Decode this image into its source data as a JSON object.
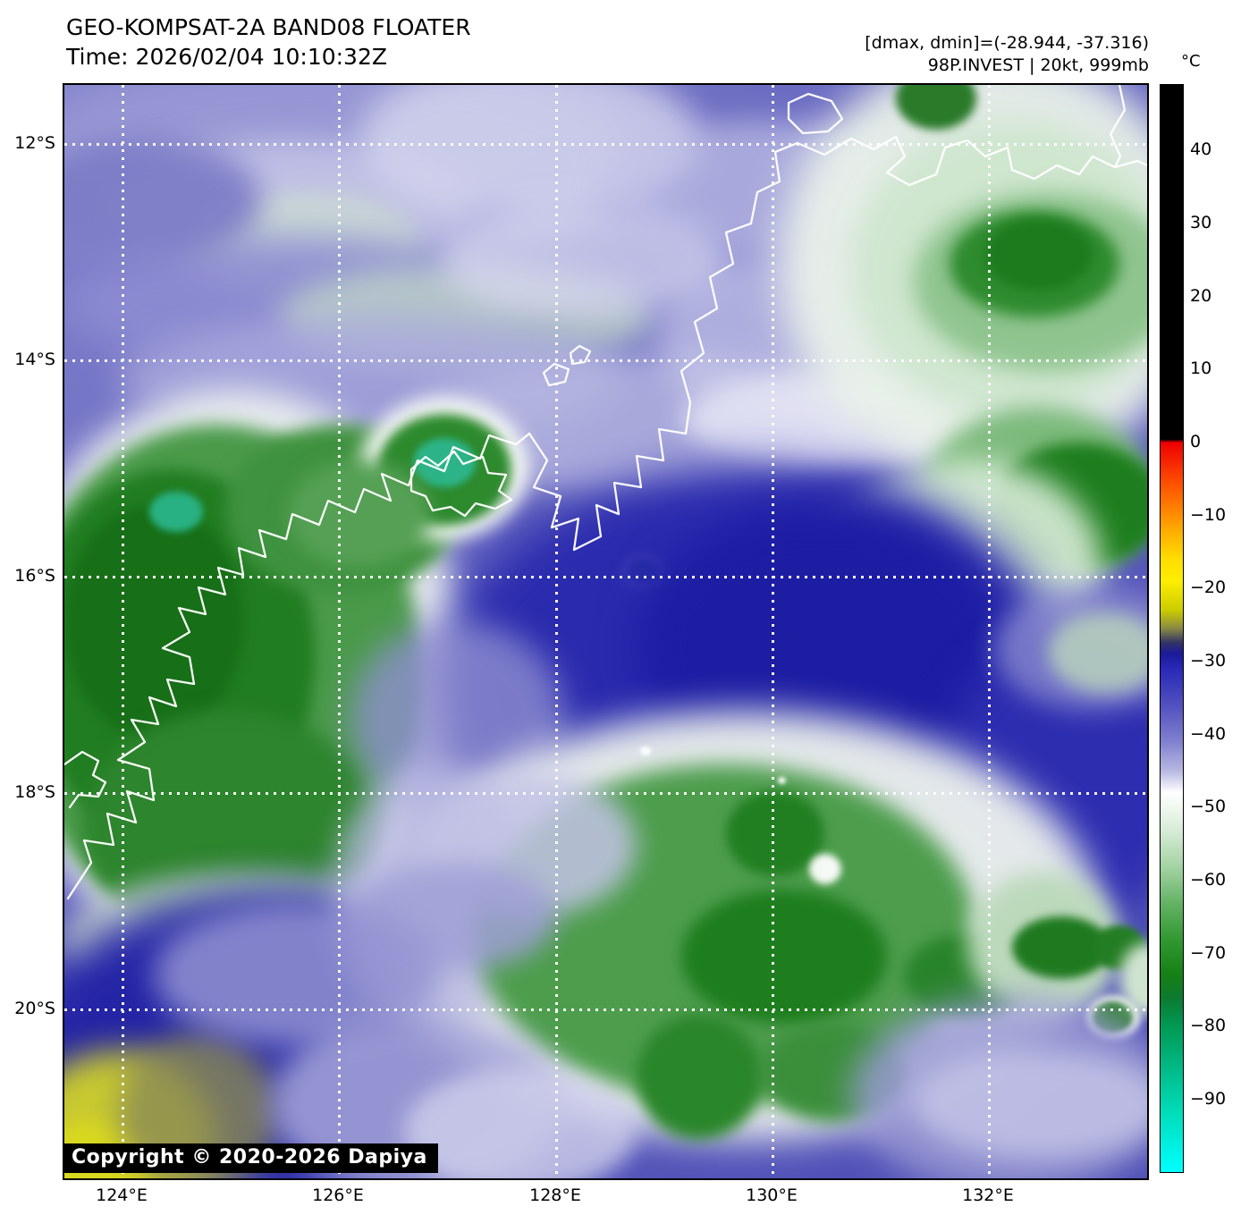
{
  "header": {
    "title": "GEO-KOMPSAT-2A BAND08 FLOATER",
    "time_line": "Time: 2026/02/04 10:10:32Z",
    "dmax_dmin_line": "[dmax, dmin]=(-28.944, -37.316)",
    "storm_line": "98P.INVEST | 20kt, 999mb"
  },
  "colorbar": {
    "unit": "°C",
    "ticks": [
      "40",
      "30",
      "20",
      "10",
      "0",
      "−10",
      "−20",
      "−30",
      "−40",
      "−50",
      "−60",
      "−70",
      "−80",
      "−90"
    ]
  },
  "axes": {
    "lat_ticks": [
      "12°S",
      "14°S",
      "16°S",
      "18°S",
      "20°S"
    ],
    "lon_ticks": [
      "124°E",
      "126°E",
      "128°E",
      "130°E",
      "132°E"
    ]
  },
  "footer": {
    "copyright": "Copyright © 2020-2026 Dapiya"
  }
}
